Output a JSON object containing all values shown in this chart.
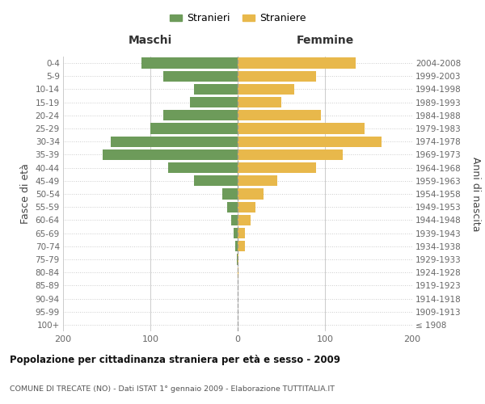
{
  "age_groups": [
    "100+",
    "95-99",
    "90-94",
    "85-89",
    "80-84",
    "75-79",
    "70-74",
    "65-69",
    "60-64",
    "55-59",
    "50-54",
    "45-49",
    "40-44",
    "35-39",
    "30-34",
    "25-29",
    "20-24",
    "15-19",
    "10-14",
    "5-9",
    "0-4"
  ],
  "birth_years": [
    "≤ 1908",
    "1909-1913",
    "1914-1918",
    "1919-1923",
    "1924-1928",
    "1929-1933",
    "1934-1938",
    "1939-1943",
    "1944-1948",
    "1949-1953",
    "1954-1958",
    "1959-1963",
    "1964-1968",
    "1969-1973",
    "1974-1978",
    "1979-1983",
    "1984-1988",
    "1989-1993",
    "1994-1998",
    "1999-2003",
    "2004-2008"
  ],
  "maschi": [
    0,
    0,
    0,
    0,
    0,
    1,
    3,
    5,
    7,
    12,
    18,
    50,
    80,
    155,
    145,
    100,
    85,
    55,
    50,
    85,
    110
  ],
  "femmine": [
    0,
    0,
    0,
    0,
    1,
    1,
    8,
    8,
    15,
    20,
    30,
    45,
    90,
    120,
    165,
    145,
    95,
    50,
    65,
    90,
    135
  ],
  "color_maschi": "#6d9b5a",
  "color_femmine": "#e8b84b",
  "color_center_line": "#999999",
  "title": "Popolazione per cittadinanza straniera per età e sesso - 2009",
  "subtitle": "COMUNE DI TRECATE (NO) - Dati ISTAT 1° gennaio 2009 - Elaborazione TUTTITALIA.IT",
  "xlabel_left": "Maschi",
  "xlabel_right": "Femmine",
  "ylabel_left": "Fasce di età",
  "ylabel_right": "Anni di nascita",
  "legend_maschi": "Stranieri",
  "legend_femmine": "Straniere",
  "xlim": 200,
  "background_color": "#ffffff",
  "grid_color": "#cccccc"
}
